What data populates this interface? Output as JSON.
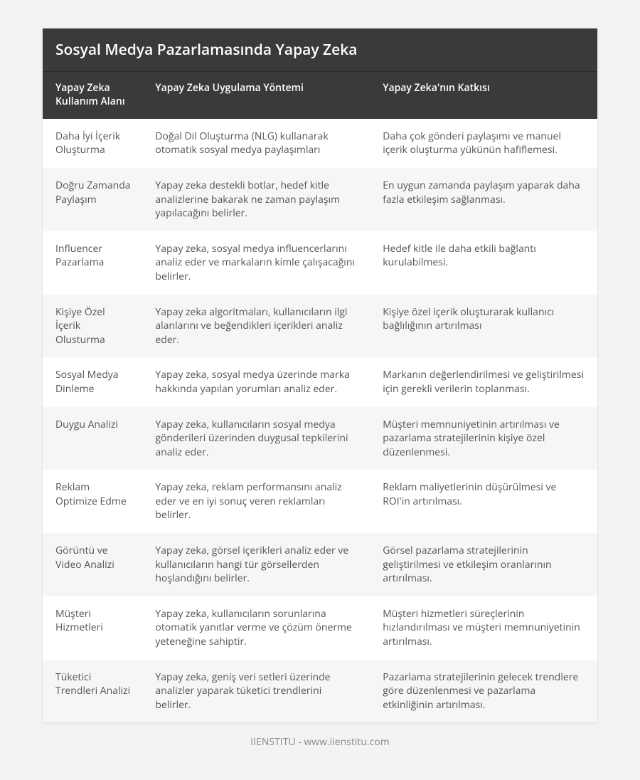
{
  "title": "Sosyal Medya Pazarlamasında Yapay Zeka",
  "columns": [
    "Yapay Zeka Kullanım Alanı",
    "Yapay Zeka Uygulama Yöntemi",
    "Yapay Zeka'nın Katkısı"
  ],
  "rows": [
    {
      "c0": "Daha İyi İçerik Oluşturma",
      "c1": "Doğal Dil Oluşturma (NLG) kullanarak otomatik sosyal medya paylaşımları",
      "c2": "Daha çok gönderi paylaşımı ve manuel içerik oluşturma yükünün hafiflemesi."
    },
    {
      "c0": "Doğru Zamanda Paylaşım",
      "c1": "Yapay zeka destekli botlar, hedef kitle analizlerine bakarak ne zaman paylaşım yapılacağını belirler.",
      "c2": "En uygun zamanda paylaşım yaparak daha fazla etkileşim sağlanması."
    },
    {
      "c0": "Influencer Pazarlama",
      "c1": "Yapay zeka, sosyal medya influencerlarını analiz eder ve markaların kimle çalışacağını belirler.",
      "c2": "Hedef kitle ile daha etkili bağlantı kurulabilmesi."
    },
    {
      "c0": "Kişiye Özel İçerik Olusturma",
      "c1": "Yapay zeka algoritmaları, kullanıcıların ilgi alanlarını ve beğendikleri içerikleri analiz eder.",
      "c2": "Kişiye özel içerik oluşturarak kullanıcı bağlılığının artırılması"
    },
    {
      "c0": "Sosyal Medya Dinleme",
      "c1": "Yapay zeka, sosyal medya üzerinde marka hakkında yapılan yorumları analiz eder.",
      "c2": "Markanın değerlendirilmesi ve geliştirilmesi için gerekli verilerin toplanması."
    },
    {
      "c0": "Duygu Analizi",
      "c1": "Yapay zeka, kullanıcıların sosyal medya gönderileri üzerinden duygusal tepkilerini analiz eder.",
      "c2": "Müşteri memnuniyetinin artırılması ve pazarlama stratejilerinin kişiye özel düzenlenmesi."
    },
    {
      "c0": "Reklam Optimize Edme",
      "c1": "Yapay zeka, reklam performansını analiz eder ve en iyi sonuç veren reklamları belirler.",
      "c2": "Reklam maliyetlerinin düşürülmesi ve ROI'in artırılması."
    },
    {
      "c0": "Görüntü ve Video Analizi",
      "c1": "Yapay zeka, görsel içerikleri analiz eder ve kullanıcıların hangi tür görsellerden hoşlandığını belirler.",
      "c2": "Görsel pazarlama stratejilerinin geliştirilmesi ve etkileşim oranlarının artırılması."
    },
    {
      "c0": "Müşteri Hizmetleri",
      "c1": "Yapay zeka, kullanıcıların sorunlarına otomatik yanıtlar verme ve çözüm önerme yeteneğine sahiptir.",
      "c2": "Müşteri hizmetleri süreçlerinin hızlandırılması ve müşteri memnuniyetinin artırılması."
    },
    {
      "c0": "Tüketici Trendleri Analizi",
      "c1": "Yapay zeka, geniş veri setleri üzerinde analizler yaparak tüketici trendlerini belirler.",
      "c2": "Pazarlama stratejilerinin gelecek trendlere göre düzenlenmesi ve pazarlama etkinliğinin artırılması."
    }
  ],
  "footer": "IIENSTITU - www.iienstitu.com",
  "colors": {
    "page_bg": "#f3f3f3",
    "header_bg": "#3a3a3a",
    "header_text": "#ffffff",
    "row_odd_bg": "#ffffff",
    "row_even_bg": "#f6f6f6",
    "body_text": "#555555",
    "footer_text": "#888888"
  },
  "typography": {
    "title_fontsize": 21,
    "header_fontsize": 14,
    "cell_fontsize": 14,
    "footer_fontsize": 14
  },
  "column_widths_pct": [
    18,
    41,
    41
  ]
}
